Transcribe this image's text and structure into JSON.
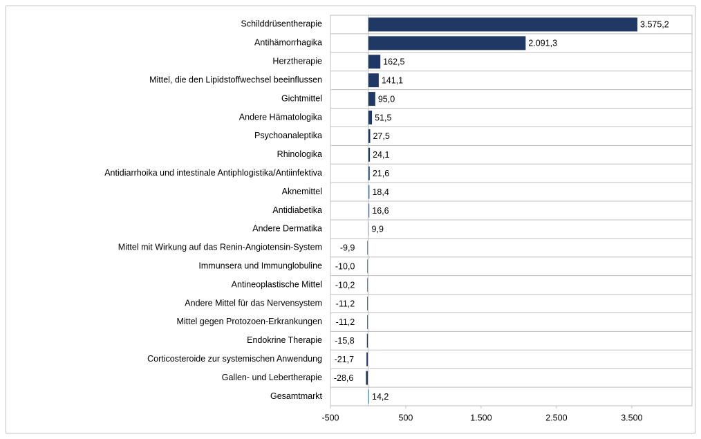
{
  "chart_data": {
    "type": "bar",
    "orientation": "horizontal",
    "categories": [
      "Schilddrüsentherapie",
      "Antihämorrhagika",
      "Herztherapie",
      "Mittel, die den Lipidstoffwechsel beeinflussen",
      "Gichtmittel",
      "Andere Hämatologika",
      "Psychoanaleptika",
      "Rhinologika",
      "Antidiarrhoika und intestinale Antiphlogistika/Antiinfektiva",
      "Aknemittel",
      "Antidiabetika",
      "Andere Dermatika",
      "Mittel mit Wirkung auf das Renin-Angiotensin-System",
      "Immunsera und Immunglobuline",
      "Antineoplastische Mittel",
      "Andere Mittel für das Nervensystem",
      "Mittel gegen Protozoen-Erkrankungen",
      "Endokrine Therapie",
      "Corticosteroide zur systemischen Anwendung",
      "Gallen- und Lebertherapie",
      "Gesamtmarkt"
    ],
    "values": [
      3575.2,
      2091.3,
      162.5,
      141.1,
      95.0,
      51.5,
      27.5,
      24.1,
      21.6,
      18.4,
      16.6,
      9.9,
      -9.9,
      -10.0,
      -10.2,
      -11.2,
      -11.2,
      -15.8,
      -21.7,
      -28.6,
      14.2
    ],
    "value_labels": [
      "3.575,2",
      "2.091,3",
      "162,5",
      "141,1",
      "95,0",
      "51,5",
      "27,5",
      "24,1",
      "21,6",
      "18,4",
      "16,6",
      "9,9",
      "-9,9",
      "-10,0",
      "-10,2",
      "-11,2",
      "-11,2",
      "-15,8",
      "-21,7",
      "-28,6",
      "14,2"
    ],
    "colors": [
      "#1f3864",
      "#1f3864",
      "#1f3864",
      "#1f3864",
      "#1f3864",
      "#1f3864",
      "#1f3864",
      "#1f3864",
      "#2e5597",
      "#4f81bd",
      "#4f81bd",
      "#8eaadb",
      "#1f3864",
      "#1f3864",
      "#1f3864",
      "#1f3864",
      "#1f3864",
      "#1f3864",
      "#1f3864",
      "#1f3864",
      "#41a5d7"
    ],
    "xlim": [
      -500,
      4300
    ],
    "xticks": [
      -500,
      500,
      {
        "value": 1500,
        "label": "1.500"
      },
      {
        "value": 2500,
        "label": "2.500"
      },
      {
        "value": 3500,
        "label": "3.500"
      }
    ]
  }
}
